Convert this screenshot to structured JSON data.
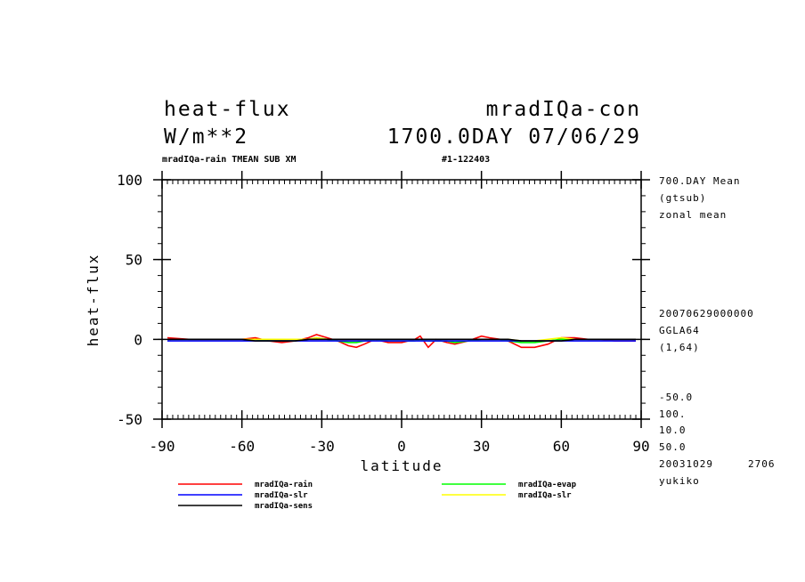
{
  "header": {
    "left_title": "heat-flux",
    "left_units": "W/m**2",
    "right_title": "mradIQa-con",
    "right_date": "1700.0DAY 07/06/29",
    "subtitle_left": "mradIQa-rain TMEAN SUB XM",
    "subtitle_right": "#1-122403"
  },
  "side_info": {
    "mean": "700.DAY Mean",
    "gtsub": "(gtsub)",
    "zonal": "zonal mean",
    "stamp": "20070629000000",
    "grid": "GGLA64",
    "dims": "(1,64)",
    "v1": "-50.0",
    "v2": "100.",
    "v3": "10.0",
    "v4": "50.0",
    "date": "20031029",
    "num": "2706",
    "user": "yukiko"
  },
  "chart_data": {
    "type": "line",
    "xlabel": "latitude",
    "ylabel": "heat-flux",
    "xlim": [
      -90,
      90
    ],
    "ylim": [
      -50,
      100
    ],
    "xticks": [
      "-90",
      "-60",
      "-30",
      "0",
      "30",
      "60",
      "90"
    ],
    "yticks": [
      "-50",
      "0",
      "50",
      "100"
    ],
    "x": [
      -88,
      -80,
      -70,
      -60,
      -55,
      -50,
      -45,
      -40,
      -35,
      -32,
      -28,
      -24,
      -20,
      -17,
      -14,
      -10,
      -5,
      0,
      5,
      7,
      10,
      13,
      17,
      20,
      25,
      30,
      33,
      37,
      40,
      45,
      50,
      55,
      60,
      65,
      70,
      75,
      80,
      88
    ],
    "series": [
      {
        "name": "mradIQa-rain",
        "color": "#ff0000",
        "values": [
          1,
          0,
          0,
          0,
          1,
          -1,
          -2,
          -1,
          1,
          3,
          1,
          -1,
          -4,
          -5,
          -3,
          0,
          -2,
          -2,
          0,
          2,
          -5,
          0,
          -2,
          -3,
          -1,
          2,
          1,
          0,
          -1,
          -5,
          -5,
          -3,
          1,
          1,
          0,
          0,
          -1,
          -1
        ]
      },
      {
        "name": "mradIQa-evap",
        "color": "#00ff00",
        "values": [
          0,
          0,
          0,
          0,
          0,
          -1,
          -1,
          -1,
          0,
          1,
          0,
          -1,
          -2,
          -2,
          -1,
          0,
          -1,
          -1,
          -1,
          0,
          -1,
          -1,
          -1,
          -2,
          -1,
          0,
          0,
          0,
          -1,
          -2,
          -2,
          -1,
          0,
          0,
          0,
          0,
          0,
          0
        ]
      },
      {
        "name": "mradIQa-slr",
        "color": "#ffff00",
        "values": [
          0,
          0,
          0,
          0,
          0,
          0,
          0,
          0,
          0,
          1,
          0,
          0,
          -1,
          -1,
          0,
          0,
          0,
          0,
          0,
          0,
          0,
          0,
          0,
          0,
          0,
          0,
          0,
          0,
          0,
          -1,
          -1,
          0,
          1,
          0,
          0,
          0,
          0,
          0
        ]
      },
      {
        "name": "mradIQa-slr",
        "color": "#0000ff",
        "values": [
          -1,
          -1,
          -1,
          -1,
          -1,
          -1,
          -1,
          -1,
          -1,
          -1,
          -1,
          -1,
          -1,
          -1,
          -1,
          -1,
          -1,
          -1,
          -1,
          -1,
          -1,
          -1,
          -1,
          -1,
          -1,
          -1,
          -1,
          -1,
          -1,
          -1,
          -1,
          -1,
          -1,
          -1,
          -1,
          -1,
          -1,
          -1
        ]
      },
      {
        "name": "mradIQa-sens",
        "color": "#000000",
        "values": [
          0,
          0,
          0,
          0,
          -1,
          -1,
          -1,
          -1,
          0,
          0,
          0,
          0,
          0,
          0,
          0,
          0,
          0,
          0,
          0,
          0,
          0,
          0,
          0,
          0,
          0,
          0,
          0,
          0,
          0,
          -1,
          -1,
          -1,
          -1,
          0,
          0,
          0,
          0,
          0
        ]
      }
    ],
    "legend": [
      {
        "label": "mradIQa-rain",
        "color": "#ff0000"
      },
      {
        "label": "mradIQa-evap",
        "color": "#00ff00"
      },
      {
        "label": "mradIQa-slr",
        "color": "#0000ff"
      },
      {
        "label": "mradIQa-slr",
        "color": "#ffff00"
      },
      {
        "label": "mradIQa-sens",
        "color": "#000000"
      }
    ],
    "legend_placement": "bottom"
  }
}
